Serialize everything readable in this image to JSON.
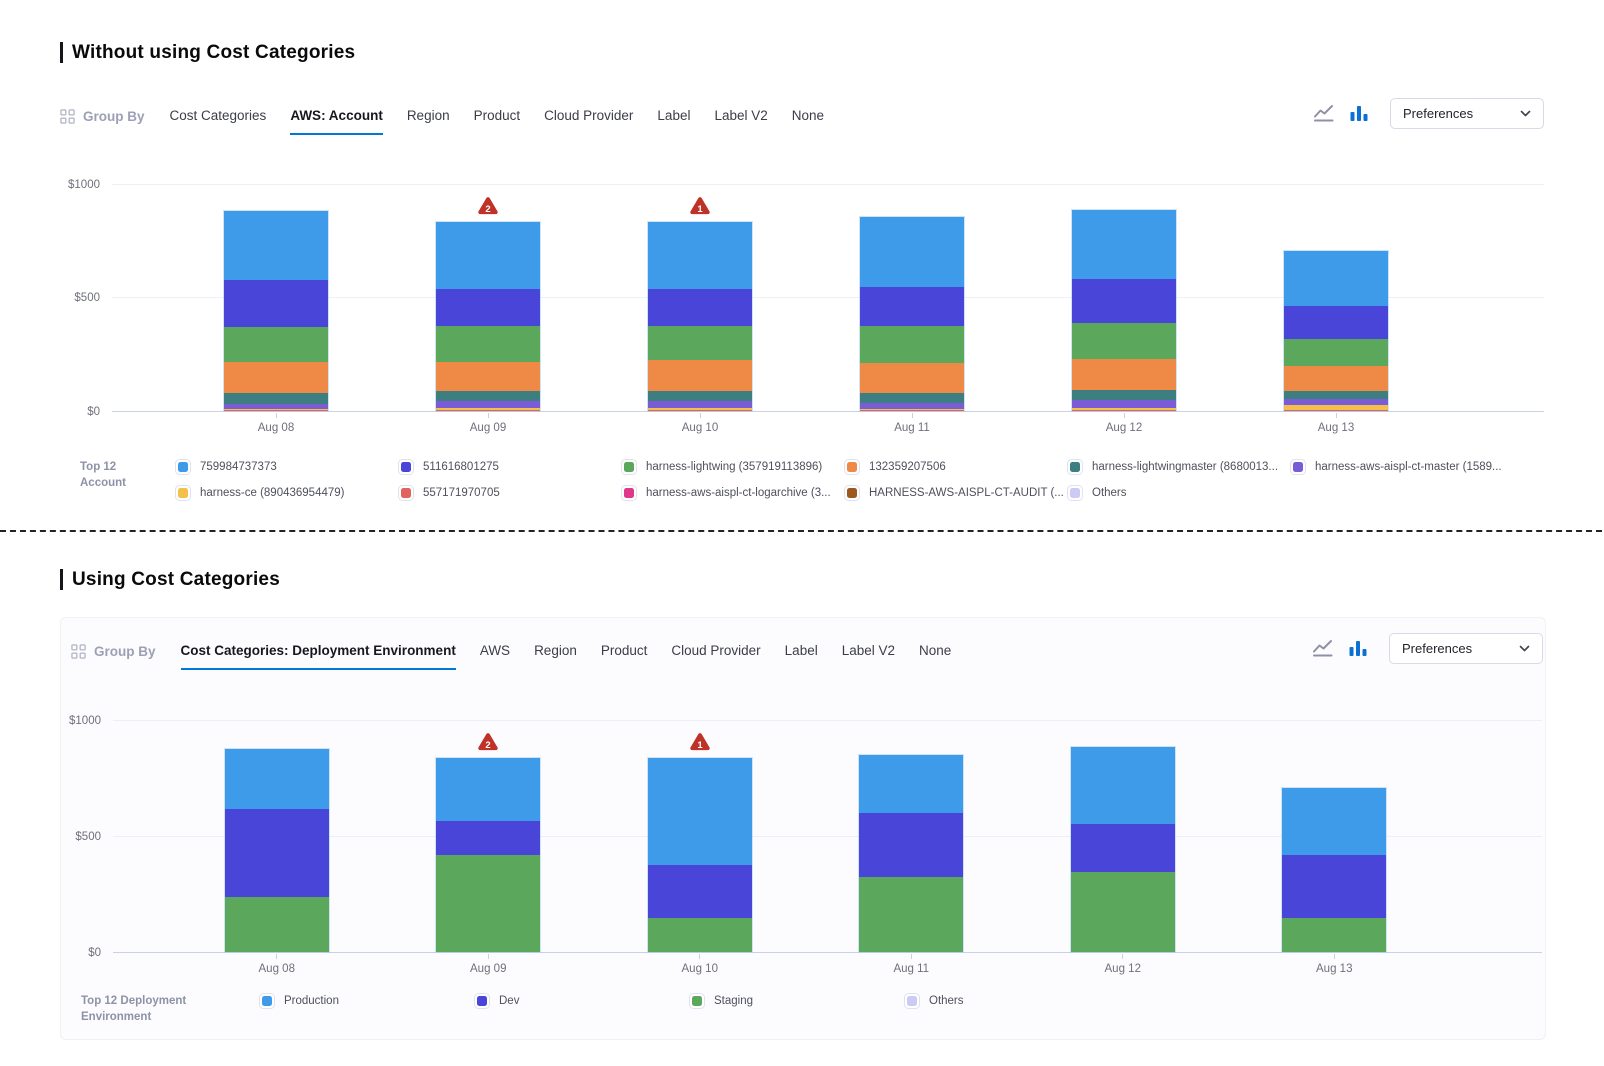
{
  "ui": {
    "accent_color": "#0278D5",
    "anomaly_color": "#BE3228",
    "bar_chart_icon_color": "#0B6FD4",
    "line_chart_icon_color": "#8F90A6",
    "icons": {
      "group_by": "grid-2x2-icon",
      "line_chart": "line-chart-icon",
      "bar_chart": "bar-chart-icon",
      "preferences_chevron": "chevron-down-icon",
      "anomaly": "warning-triangle-icon"
    }
  },
  "sections": [
    {
      "title": "Without using Cost Categories",
      "toolbar": {
        "group_by_label": "Group By",
        "tabs": [
          "Cost Categories",
          "AWS: Account",
          "Region",
          "Product",
          "Cloud Provider",
          "Label",
          "Label V2",
          "None"
        ],
        "selected_tab": "AWS: Account",
        "preferences_label": "Preferences"
      },
      "legend_title_lines": [
        "Top 12",
        "Account"
      ]
    },
    {
      "title": "Using Cost Categories",
      "toolbar": {
        "group_by_label": "Group By",
        "tabs": [
          "Cost Categories: Deployment Environment",
          "AWS",
          "Region",
          "Product",
          "Cloud Provider",
          "Label",
          "Label V2",
          "None"
        ],
        "selected_tab": "Cost Categories: Deployment Environment",
        "preferences_label": "Preferences"
      },
      "legend_title_lines": [
        "Top 12 Deployment",
        "Environment"
      ]
    }
  ],
  "chart_data": [
    {
      "type": "bar",
      "stacked": true,
      "title": "Daily cost grouped by AWS Account",
      "categories": [
        "Aug 08",
        "Aug 09",
        "Aug 10",
        "Aug 11",
        "Aug 12",
        "Aug 13"
      ],
      "ylim": [
        0,
        1000
      ],
      "y_ticks": [
        "$0",
        "$500",
        "$1000"
      ],
      "grid": true,
      "series": [
        {
          "name": "Others",
          "color": "#CDCBF5",
          "values": [
            0,
            0,
            0,
            0,
            0,
            0
          ]
        },
        {
          "name": "HARNESS-AWS-AISPL-CT-AUDIT (...",
          "color": "#9C591E",
          "values": [
            0,
            0,
            0,
            0,
            0,
            0
          ]
        },
        {
          "name": "harness-aws-aispl-ct-logarchive (3...",
          "color": "#E0368C",
          "values": [
            0,
            0,
            0,
            0,
            0,
            0
          ]
        },
        {
          "name": "557171970705",
          "color": "#E2625E",
          "values": [
            4,
            4,
            4,
            4,
            4,
            2
          ]
        },
        {
          "name": "harness-ce (890436954479)",
          "color": "#F3C14B",
          "values": [
            6,
            10,
            10,
            6,
            10,
            25
          ]
        },
        {
          "name": "harness-aws-aispl-ct-master (1589...",
          "color": "#7A5CD6",
          "values": [
            19,
            29,
            31,
            25,
            35,
            26
          ]
        },
        {
          "name": "harness-lightwingmaster (8680013...",
          "color": "#3D7F80",
          "values": [
            51,
            44,
            43,
            45,
            44,
            33
          ]
        },
        {
          "name": "132359207506",
          "color": "#EE8A45",
          "values": [
            136,
            130,
            137,
            133,
            134,
            113
          ]
        },
        {
          "name": "harness-lightwing (357919113896)",
          "color": "#5BA75C",
          "values": [
            156,
            157,
            150,
            164,
            163,
            118
          ]
        },
        {
          "name": "511616801275",
          "color": "#4845D8",
          "values": [
            208,
            165,
            165,
            172,
            193,
            145
          ]
        },
        {
          "name": "759984737373",
          "color": "#3D9BE9",
          "values": [
            304,
            297,
            295,
            309,
            307,
            247
          ]
        }
      ],
      "annotations": [
        {
          "category": "Aug 09",
          "badge": "2",
          "type": "anomaly"
        },
        {
          "category": "Aug 10",
          "badge": "1",
          "type": "anomaly"
        }
      ],
      "legend": {
        "position": "bottom",
        "items": [
          {
            "label": "759984737373",
            "color": "#3D9BE9"
          },
          {
            "label": "harness-ce (890436954479)",
            "color": "#F3C14B"
          },
          {
            "label": "511616801275",
            "color": "#4845D8"
          },
          {
            "label": "557171970705",
            "color": "#E2625E"
          },
          {
            "label": "harness-lightwing (357919113896)",
            "color": "#5BA75C"
          },
          {
            "label": "harness-aws-aispl-ct-logarchive (3...",
            "color": "#E0368C"
          },
          {
            "label": "132359207506",
            "color": "#EE8A45"
          },
          {
            "label": "HARNESS-AWS-AISPL-CT-AUDIT (...",
            "color": "#9C591E"
          },
          {
            "label": "harness-lightwingmaster (8680013...",
            "color": "#3D7F80"
          },
          {
            "label": "Others",
            "color": "#CDCBF5"
          },
          {
            "label": "harness-aws-aispl-ct-master (1589...",
            "color": "#7A5CD6"
          }
        ]
      }
    },
    {
      "type": "bar",
      "stacked": true,
      "title": "Daily cost grouped by Cost Categories: Deployment Environment",
      "categories": [
        "Aug 08",
        "Aug 09",
        "Aug 10",
        "Aug 11",
        "Aug 12",
        "Aug 13"
      ],
      "ylim": [
        0,
        1000
      ],
      "y_ticks": [
        "$0",
        "$500",
        "$1000"
      ],
      "grid": true,
      "series": [
        {
          "name": "Others",
          "color": "#CDCBF5",
          "values": [
            0,
            0,
            0,
            0,
            0,
            0
          ]
        },
        {
          "name": "Staging",
          "color": "#5BA75C",
          "values": [
            235,
            421,
            148,
            322,
            346,
            146
          ]
        },
        {
          "name": "Dev",
          "color": "#4845D8",
          "values": [
            381,
            145,
            227,
            280,
            208,
            274
          ]
        },
        {
          "name": "Production",
          "color": "#3D9BE9",
          "values": [
            264,
            274,
            462,
            252,
            333,
            290
          ]
        }
      ],
      "annotations": [
        {
          "category": "Aug 09",
          "badge": "2",
          "type": "anomaly"
        },
        {
          "category": "Aug 10",
          "badge": "1",
          "type": "anomaly"
        }
      ],
      "legend": {
        "position": "bottom",
        "items": [
          {
            "label": "Production",
            "color": "#3D9BE9"
          },
          {
            "label": "Dev",
            "color": "#4845D8"
          },
          {
            "label": "Staging",
            "color": "#5BA75C"
          },
          {
            "label": "Others",
            "color": "#CDCBF5"
          }
        ]
      }
    }
  ]
}
